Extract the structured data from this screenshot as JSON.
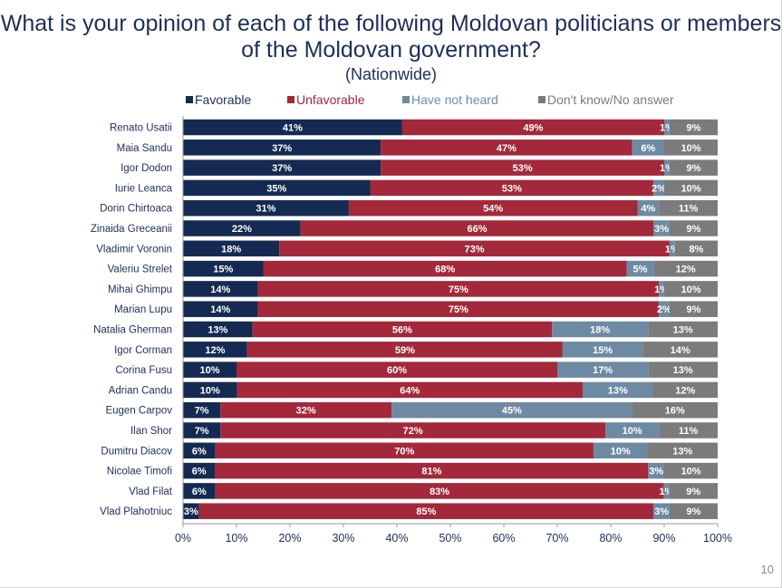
{
  "page": {
    "title": "What is your opinion of each of the following Moldovan politicians or members of the Moldovan government?",
    "subtitle": "(Nationwide)",
    "page_number": "10"
  },
  "chart_data": {
    "type": "bar",
    "orientation": "horizontal",
    "stacked": true,
    "percent_stacked": true,
    "categories": [
      "Renato Usatii",
      "Maia Sandu",
      "Igor Dodon",
      "Iurie Leanca",
      "Dorin Chirtoaca",
      "Zinaida Greceanii",
      "Vladimir Voronin",
      "Valeriu Strelet",
      "Mihai Ghimpu",
      "Marian Lupu",
      "Natalia Gherman",
      "Igor Corman",
      "Corina Fusu",
      "Adrian Candu",
      "Eugen Carpov",
      "Ilan Shor",
      "Dumitru Diacov",
      "Nicolae Timofi",
      "Vlad Filat",
      "Vlad Plahotniuc"
    ],
    "series": [
      {
        "name": "Favorable",
        "color": "#152a52",
        "label_color": "#ffffff",
        "values": [
          41,
          37,
          37,
          35,
          31,
          22,
          18,
          15,
          14,
          14,
          13,
          12,
          10,
          10,
          7,
          7,
          6,
          6,
          6,
          3
        ]
      },
      {
        "name": "Unfavorable",
        "color": "#a3283a",
        "label_color": "#ffffff",
        "values": [
          49,
          47,
          53,
          53,
          54,
          66,
          73,
          68,
          75,
          75,
          56,
          59,
          60,
          64,
          32,
          72,
          70,
          81,
          83,
          85
        ]
      },
      {
        "name": "Have not heard",
        "color": "#6e8aa3",
        "label_color": "#ffffff",
        "values": [
          1,
          6,
          1,
          2,
          4,
          3,
          1,
          5,
          1,
          2,
          18,
          15,
          17,
          13,
          45,
          10,
          10,
          3,
          1,
          3
        ]
      },
      {
        "name": "Don't know/No answer",
        "color": "#7b7b7b",
        "label_color": "#ffffff",
        "values": [
          9,
          10,
          9,
          10,
          11,
          9,
          8,
          12,
          10,
          9,
          13,
          14,
          13,
          12,
          16,
          11,
          13,
          10,
          9,
          9
        ]
      }
    ],
    "xaxis": {
      "ticks": [
        "0%",
        "10%",
        "20%",
        "30%",
        "40%",
        "50%",
        "60%",
        "70%",
        "80%",
        "90%",
        "100%"
      ],
      "range": [
        0,
        100
      ]
    },
    "legend": "top",
    "grid": false,
    "title_color": "#1c2f5b",
    "axis_text_color": "#1c2f5b"
  }
}
